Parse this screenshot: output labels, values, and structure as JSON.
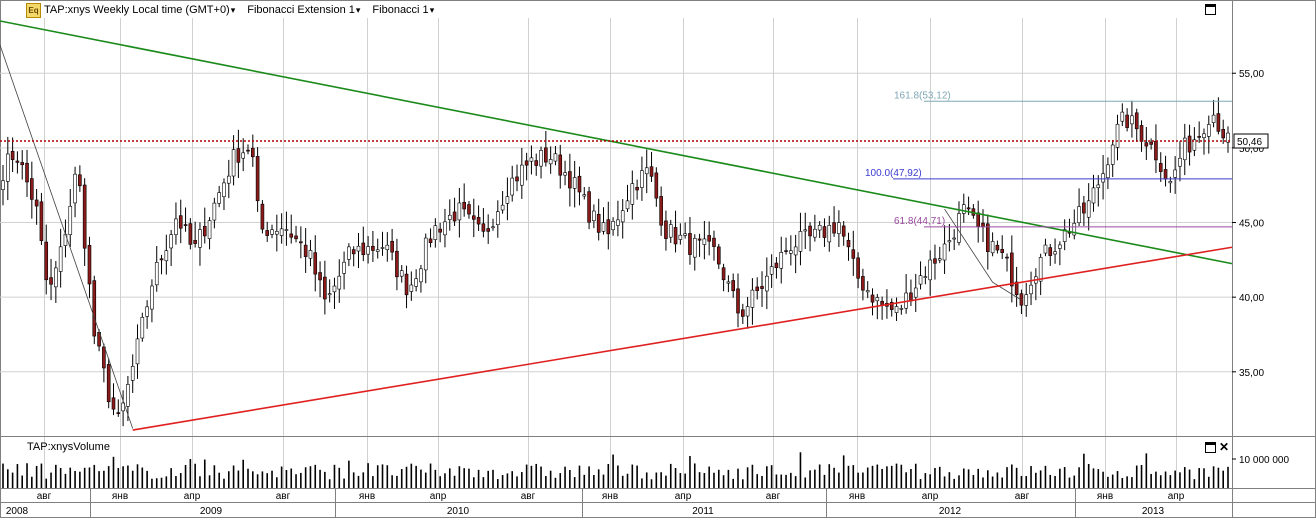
{
  "header": {
    "icon_text": "Eq",
    "symbol_label": "TAP:xnys Weekly Local time (GMT+0)",
    "study_1": "Fibonacci Extension 1",
    "study_2": "Fibonacci 1"
  },
  "volume_panel": {
    "title": "TAP:xnysVolume",
    "axis_label": "10 000 000"
  },
  "colors": {
    "up_candle": "#ffffff",
    "down_candle": "#8b1a1a",
    "wick": "#000000",
    "green_trendline": "#1a8a1a",
    "red_trendline": "#e02020",
    "last_price_line": "#b00000",
    "fib_161": "#7fa7b5",
    "fib_100": "#3a3ad0",
    "fib_61": "#9a4aa0",
    "grid": "#d0d0d0"
  },
  "chart_data": {
    "type": "candlestick",
    "price_axis": {
      "ticks": [
        "35,00",
        "40,00",
        "45,00",
        "50,00",
        "55,00"
      ],
      "range": [
        30.7,
        58.7
      ]
    },
    "last_price": {
      "value": 50.46,
      "label": "50,46"
    },
    "month_labels": [
      "авг",
      "янв",
      "апр",
      "авг",
      "янв",
      "апр",
      "авг",
      "янв",
      "апр",
      "авг",
      "янв",
      "апр",
      "авг",
      "янв",
      "апр"
    ],
    "year_labels": [
      "2008",
      "2009",
      "2010",
      "2011",
      "2012",
      "2013"
    ],
    "fibonacci_levels": [
      {
        "label": "161.8(53,12)",
        "value": 53.12
      },
      {
        "label": "100.0(47,92)",
        "value": 47.92
      },
      {
        "label": "61.8(44,71)",
        "value": 44.71
      }
    ],
    "trendlines": [
      {
        "name": "green",
        "from": {
          "week": 0,
          "price": 58.5
        },
        "to": {
          "week": 255,
          "price": 42.3
        }
      },
      {
        "name": "red",
        "from": {
          "week": 27,
          "price": 31.1
        },
        "to": {
          "week": 255,
          "price": 43.3
        }
      }
    ],
    "volume_ref": 10000000
  }
}
